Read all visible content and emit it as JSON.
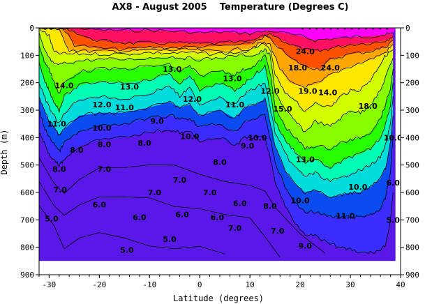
{
  "chart_data": {
    "type": "heatmap",
    "title": "AX8 - August 2005    Temperature (Degrees C)",
    "xlabel": "Latitude (degrees)",
    "ylabel": "Depth (m)",
    "xlim": [
      -32,
      40
    ],
    "ylim": [
      900,
      0
    ],
    "x_ticks": [
      -30,
      -20,
      -10,
      0,
      10,
      20,
      30,
      40
    ],
    "y_ticks": [
      0,
      100,
      200,
      300,
      400,
      500,
      600,
      700,
      800,
      900
    ],
    "colors": {
      "t5": "#5a18e8",
      "t8": "#3b2dff",
      "t10": "#0a4cf0",
      "t11": "#0a9af5",
      "t12": "#00dcdc",
      "t13": "#00ffb4",
      "t14": "#28ff00",
      "t16": "#88ff00",
      "t18": "#d2ff00",
      "t20": "#ffe800",
      "t22": "#ffa600",
      "t24": "#ff5000",
      "t26": "#ff1060",
      "t28": "#ff00ff"
    },
    "contour_labels": [
      {
        "lat": -29.5,
        "depth": 705,
        "text": "5.0"
      },
      {
        "lat": -27.8,
        "depth": 600,
        "text": "7.0"
      },
      {
        "lat": -28.0,
        "depth": 525,
        "text": "8.0"
      },
      {
        "lat": -28.5,
        "depth": 360,
        "text": "11.0"
      },
      {
        "lat": -27.0,
        "depth": 220,
        "text": "14.0"
      },
      {
        "lat": -24.5,
        "depth": 455,
        "text": "8.0"
      },
      {
        "lat": -20.0,
        "depth": 655,
        "text": "6.0"
      },
      {
        "lat": -19.0,
        "depth": 525,
        "text": "7.0"
      },
      {
        "lat": -19.0,
        "depth": 435,
        "text": "8.0"
      },
      {
        "lat": -19.5,
        "depth": 375,
        "text": "10.0"
      },
      {
        "lat": -19.5,
        "depth": 290,
        "text": "12.0"
      },
      {
        "lat": -14.0,
        "depth": 225,
        "text": "13.0"
      },
      {
        "lat": -15.0,
        "depth": 300,
        "text": "11.0"
      },
      {
        "lat": -14.5,
        "depth": 820,
        "text": "5.0"
      },
      {
        "lat": -12.0,
        "depth": 700,
        "text": "6.0"
      },
      {
        "lat": -11.0,
        "depth": 430,
        "text": "8.0"
      },
      {
        "lat": -8.5,
        "depth": 350,
        "text": "9.0"
      },
      {
        "lat": -9.0,
        "depth": 610,
        "text": "7.0"
      },
      {
        "lat": -5.5,
        "depth": 160,
        "text": "13.0"
      },
      {
        "lat": -2.0,
        "depth": 405,
        "text": "10.0"
      },
      {
        "lat": -4.0,
        "depth": 565,
        "text": "7.0"
      },
      {
        "lat": -6.0,
        "depth": 780,
        "text": "5.0"
      },
      {
        "lat": -3.5,
        "depth": 690,
        "text": "6.0"
      },
      {
        "lat": -1.5,
        "depth": 270,
        "text": "12.0"
      },
      {
        "lat": 2.0,
        "depth": 610,
        "text": "7.0"
      },
      {
        "lat": 3.5,
        "depth": 700,
        "text": "6.0"
      },
      {
        "lat": 6.5,
        "depth": 195,
        "text": "13.0"
      },
      {
        "lat": 7.0,
        "depth": 290,
        "text": "11.0"
      },
      {
        "lat": 4.0,
        "depth": 500,
        "text": "8.0"
      },
      {
        "lat": 7.0,
        "depth": 740,
        "text": "7.0"
      },
      {
        "lat": 8.0,
        "depth": 650,
        "text": "6.0"
      },
      {
        "lat": 9.5,
        "depth": 440,
        "text": "9.0"
      },
      {
        "lat": 11.5,
        "depth": 410,
        "text": "10.0"
      },
      {
        "lat": 14.0,
        "depth": 240,
        "text": "12.0"
      },
      {
        "lat": 16.5,
        "depth": 305,
        "text": "15.0"
      },
      {
        "lat": 19.5,
        "depth": 155,
        "text": "18.0"
      },
      {
        "lat": 21.5,
        "depth": 240,
        "text": "19.0"
      },
      {
        "lat": 21.0,
        "depth": 95,
        "text": "24.0"
      },
      {
        "lat": 25.5,
        "depth": 245,
        "text": "14.0"
      },
      {
        "lat": 26.0,
        "depth": 155,
        "text": "24.0"
      },
      {
        "lat": 33.5,
        "depth": 295,
        "text": "18.0"
      },
      {
        "lat": 21.0,
        "depth": 490,
        "text": "13.0"
      },
      {
        "lat": 20.0,
        "depth": 640,
        "text": "10.0"
      },
      {
        "lat": 14.0,
        "depth": 660,
        "text": "8.0"
      },
      {
        "lat": 15.5,
        "depth": 750,
        "text": "7.0"
      },
      {
        "lat": 21.0,
        "depth": 805,
        "text": "9.0"
      },
      {
        "lat": 29.0,
        "depth": 695,
        "text": "11.0"
      },
      {
        "lat": 31.5,
        "depth": 590,
        "text": "10.0"
      },
      {
        "lat": 38.5,
        "depth": 410,
        "text": "10.0"
      },
      {
        "lat": 38.5,
        "depth": 710,
        "text": "5.0"
      },
      {
        "lat": 38.5,
        "depth": 575,
        "text": "6.0"
      }
    ]
  }
}
